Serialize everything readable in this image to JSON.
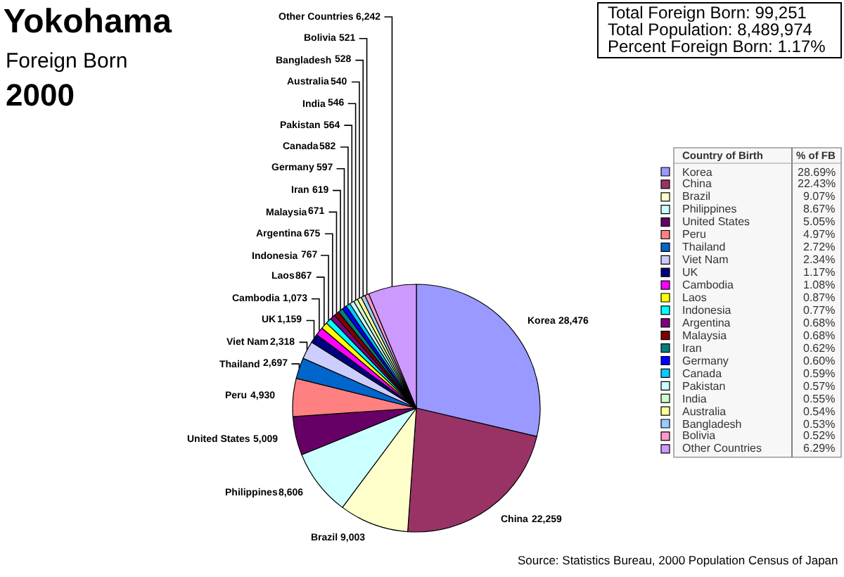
{
  "chart_data": {
    "type": "pie",
    "title": "Yokohama",
    "subtitle": "Foreign Born",
    "legend_title": "Country of Birth",
    "categories": [
      "Korea",
      "China",
      "Brazil",
      "Philippines",
      "United States",
      "Peru",
      "Thailand",
      "Viet Nam",
      "UK",
      "Cambodia",
      "Laos",
      "Indonesia",
      "Argentina",
      "Malaysia",
      "Iran",
      "Germany",
      "Canada",
      "Pakistan",
      "India",
      "Australia",
      "Bangladesh",
      "Bolivia",
      "Other Countries"
    ],
    "values": [
      28476,
      22259,
      9003,
      8606,
      5009,
      4930,
      2697,
      2318,
      1159,
      1073,
      867,
      767,
      675,
      671,
      619,
      597,
      582,
      564,
      546,
      540,
      528,
      521,
      6242
    ],
    "value_labels": [
      "28,476",
      "22,259",
      "9,003",
      "8,606",
      "5,009",
      "4,930",
      "2,697",
      "2,318",
      "1,159",
      "1,073",
      "867",
      "767",
      "675",
      "671",
      "619",
      "597",
      "582",
      "564",
      "546",
      "540",
      "528",
      "521",
      "6,242"
    ],
    "colors": [
      "#9999ff",
      "#993366",
      "#ffffcc",
      "#ccffff",
      "#660066",
      "#ff8080",
      "#0066cc",
      "#ccccff",
      "#000080",
      "#ff00ff",
      "#ffff00",
      "#00ffff",
      "#800080",
      "#800000",
      "#008080",
      "#0000ff",
      "#00ccff",
      "#ccffff",
      "#ccffcc",
      "#ffff99",
      "#99ccff",
      "#ff99cc",
      "#cc99ff"
    ],
    "legend": "right",
    "annotations": [
      "2000",
      "Total Foreign Born: 99,251",
      "Total Population: 8,489,974",
      "Percent Foreign Born: 1.17%",
      "% of FB",
      "28.69%",
      "22.43%",
      "9.07%",
      "8.67%",
      "5.05%",
      "4.97%",
      "2.72%",
      "2.34%",
      "1.17%",
      "1.08%",
      "0.87%",
      "0.77%",
      "0.68%",
      "0.68%",
      "0.62%",
      "0.60%",
      "0.59%",
      "0.57%",
      "0.55%",
      "0.54%",
      "0.53%",
      "0.52%",
      "6.29%",
      "Source: Statistics Bureau, 2000 Population Census of Japan"
    ]
  }
}
